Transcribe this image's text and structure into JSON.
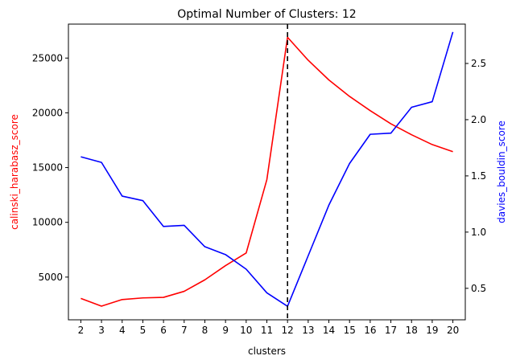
{
  "chart_data": {
    "type": "line",
    "title": "Optimal Number of Clusters: 12",
    "xlabel": "clusters",
    "ylabel_left": "calinski_harabasz_score",
    "ylabel_right": "davies_bouldin_score",
    "x": [
      2,
      3,
      4,
      5,
      6,
      7,
      8,
      9,
      10,
      11,
      12,
      13,
      14,
      15,
      16,
      17,
      18,
      19,
      20
    ],
    "xlim": [
      1.4,
      20.6
    ],
    "x_ticks": [
      "2",
      "3",
      "4",
      "5",
      "6",
      "7",
      "8",
      "9",
      "10",
      "11",
      "12",
      "13",
      "14",
      "15",
      "16",
      "17",
      "18",
      "19",
      "20"
    ],
    "ylim_left": [
      1100,
      28100
    ],
    "yticks_left": [
      5000,
      10000,
      15000,
      20000,
      25000
    ],
    "ylim_right": [
      0.22,
      2.85
    ],
    "yticks_right": [
      0.5,
      1.0,
      1.5,
      2.0,
      2.5
    ],
    "optimal_k": 12,
    "series": [
      {
        "axis": "left",
        "color": "#ff0000",
        "values": [
          3050,
          2350,
          2950,
          3100,
          3150,
          3700,
          4750,
          6050,
          7200,
          13900,
          26900,
          24800,
          23000,
          21500,
          20200,
          19000,
          18000,
          17100,
          16450
        ]
      },
      {
        "axis": "right",
        "color": "#0000ff",
        "values": [
          1.67,
          1.62,
          1.32,
          1.28,
          1.05,
          1.06,
          0.87,
          0.8,
          0.67,
          0.46,
          0.34,
          0.79,
          1.24,
          1.61,
          1.87,
          1.88,
          2.11,
          2.16,
          2.78
        ]
      }
    ]
  }
}
